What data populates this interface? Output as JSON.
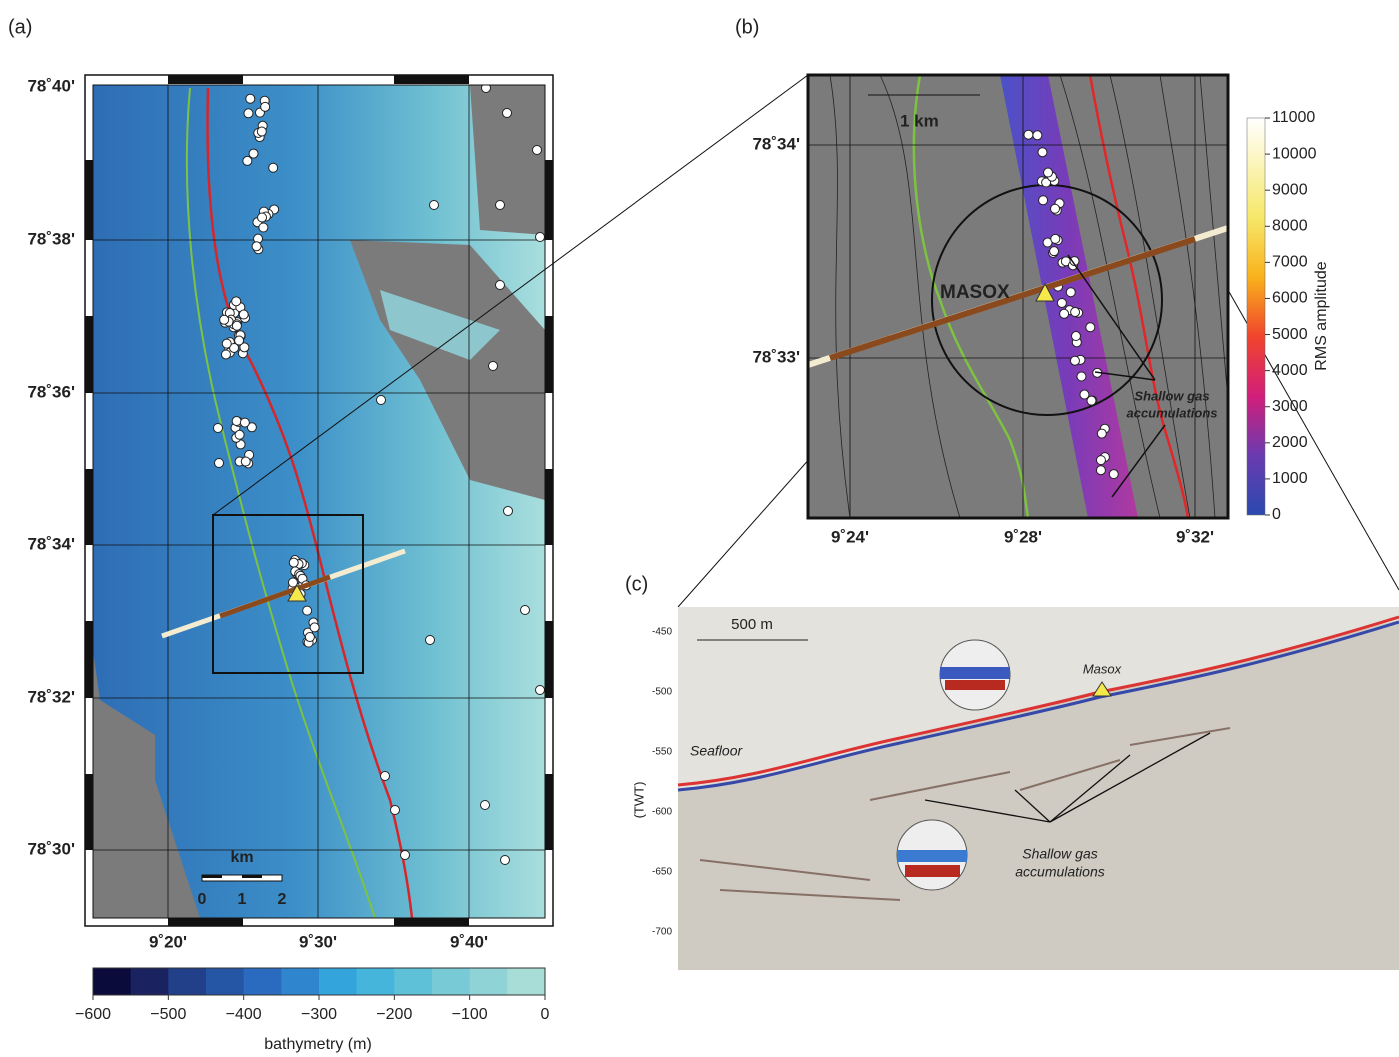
{
  "panel_a": {
    "label": "(a)",
    "lat_labels": [
      "78˚40'",
      "78˚38'",
      "78˚36'",
      "78˚34'",
      "78˚32'",
      "78˚30'"
    ],
    "lon_labels": [
      "9˚20'",
      "9˚30'",
      "9˚40'"
    ],
    "scale_bar": {
      "title": "km",
      "ticks": [
        "0",
        "1",
        "2"
      ]
    },
    "colorbar": {
      "ticks": [
        "−600",
        "−500",
        "−400",
        "−300",
        "−200",
        "−100",
        "0"
      ],
      "label": "bathymetry (m)"
    }
  },
  "panel_b": {
    "label": "(b)",
    "lat_labels": [
      "78˚34'",
      "78˚33'"
    ],
    "lon_labels": [
      "9˚24'",
      "9˚28'",
      "9˚32'"
    ],
    "scale_label": "1 km",
    "site": "MASOX",
    "annotation": [
      "Shallow gas",
      "accumulations"
    ],
    "colorbar": {
      "ticks": [
        "0",
        "1000",
        "2000",
        "3000",
        "4000",
        "5000",
        "6000",
        "7000",
        "8000",
        "9000",
        "10000",
        "11000"
      ],
      "label": "RMS amplitude"
    }
  },
  "panel_c": {
    "label": "(c)",
    "scale_label": "500 m",
    "site": "Masox",
    "seafloor_label": "Seafloor",
    "annotation": [
      "Shallow gas",
      "accumulations"
    ],
    "axis_label": "(TWT)",
    "ticks": [
      "-450",
      "-500",
      "-550",
      "-600",
      "-650",
      "-700"
    ]
  }
}
